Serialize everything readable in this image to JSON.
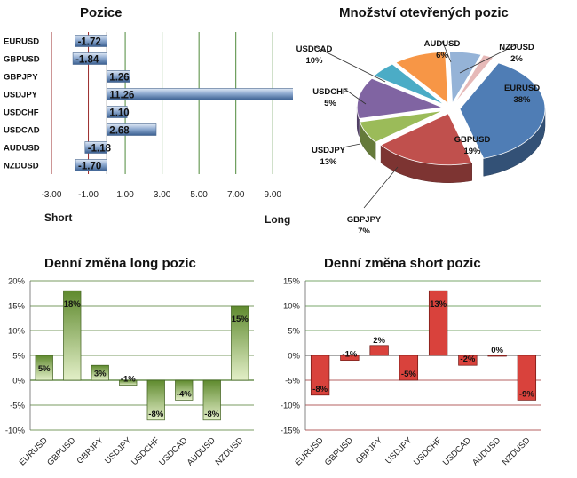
{
  "chart_data": [
    {
      "type": "bar",
      "orientation": "horizontal",
      "title": "Pozice",
      "categories": [
        "EURUSD",
        "GBPUSD",
        "GBPJPY",
        "USDJPY",
        "USDCHF",
        "USDCAD",
        "AUDUSD",
        "NZDUSD"
      ],
      "values": [
        -1.72,
        -1.84,
        1.26,
        11.26,
        1.1,
        2.68,
        -1.18,
        -1.7
      ],
      "value_labels": [
        "-1.72",
        "-1.84",
        "1.26",
        "11.26",
        "1.10",
        "2.68",
        "-1.18",
        "-1.70"
      ],
      "xticks": [
        -3,
        -1,
        1,
        3,
        5,
        7,
        9
      ],
      "xtick_labels": [
        "-3.00",
        "-1.00",
        "1.00",
        "3.00",
        "5.00",
        "7.00",
        "9.00"
      ],
      "xlim": [
        -3,
        10
      ],
      "left_label": "Short",
      "right_label": "Long",
      "colors": {
        "bar": "#8eaad0",
        "bar_dark": "#3a5f91",
        "grid_neg": "#9b2d2d",
        "grid_pos": "#4e8a3a"
      }
    },
    {
      "type": "pie",
      "title": "Množství otevřených pozic",
      "slices": [
        {
          "label": "EURUSD",
          "value": 38,
          "pct_label": "38%",
          "color": "#4f7db5"
        },
        {
          "label": "GBPUSD",
          "value": 19,
          "pct_label": "19%",
          "color": "#c0504d"
        },
        {
          "label": "GBPJPY",
          "value": 7,
          "pct_label": "7%",
          "color": "#9bbb59"
        },
        {
          "label": "USDJPY",
          "value": 13,
          "pct_label": "13%",
          "color": "#8064a2"
        },
        {
          "label": "USDCHF",
          "value": 5,
          "pct_label": "5%",
          "color": "#4bacc6"
        },
        {
          "label": "USDCAD",
          "value": 10,
          "pct_label": "10%",
          "color": "#f79646"
        },
        {
          "label": "AUDUSD",
          "value": 6,
          "pct_label": "6%",
          "color": "#95b3d7"
        },
        {
          "label": "NZDUSD",
          "value": 2,
          "pct_label": "2%",
          "color": "#e6b9b8"
        }
      ]
    },
    {
      "type": "bar",
      "title": "Denní změna long pozic",
      "categories": [
        "EURUSD",
        "GBPUSD",
        "GBPJPY",
        "USDJPY",
        "USDCHF",
        "USDCAD",
        "AUDUSD",
        "NZDUSD"
      ],
      "values": [
        5,
        18,
        3,
        -1,
        -8,
        -4,
        -8,
        15
      ],
      "value_labels": [
        "5%",
        "18%",
        "3%",
        "-1%",
        "-8%",
        "-4%",
        "-8%",
        "15%"
      ],
      "yticks": [
        -10,
        -5,
        0,
        5,
        10,
        15,
        20
      ],
      "ytick_labels": [
        "-10%",
        "-5%",
        "0%",
        "5%",
        "10%",
        "15%",
        "20%"
      ],
      "ylim": [
        -10,
        20
      ],
      "colors": {
        "bar": "#8fb05a",
        "bar_light": "#e3efc8",
        "grid": "#4e7a2e"
      }
    },
    {
      "type": "bar",
      "title": "Denní změna short pozic",
      "categories": [
        "EURUSD",
        "GBPUSD",
        "GBPJPY",
        "USDJPY",
        "USDCHF",
        "USDCAD",
        "AUDUSD",
        "NZDUSD"
      ],
      "values": [
        -8,
        -1,
        2,
        -5,
        13,
        -2,
        0,
        -9
      ],
      "value_labels": [
        "-8%",
        "-1%",
        "2%",
        "-5%",
        "13%",
        "-2%",
        "0%",
        "-9%"
      ],
      "yticks": [
        -15,
        -10,
        -5,
        0,
        5,
        10,
        15
      ],
      "ytick_labels": [
        "-15%",
        "-10%",
        "-5%",
        "0%",
        "5%",
        "10%",
        "15%"
      ],
      "ylim": [
        -15,
        15
      ],
      "colors": {
        "bar": "#d9423c",
        "grid_pos": "#4e8a3a",
        "grid_neg": "#9b2d2d"
      }
    }
  ]
}
